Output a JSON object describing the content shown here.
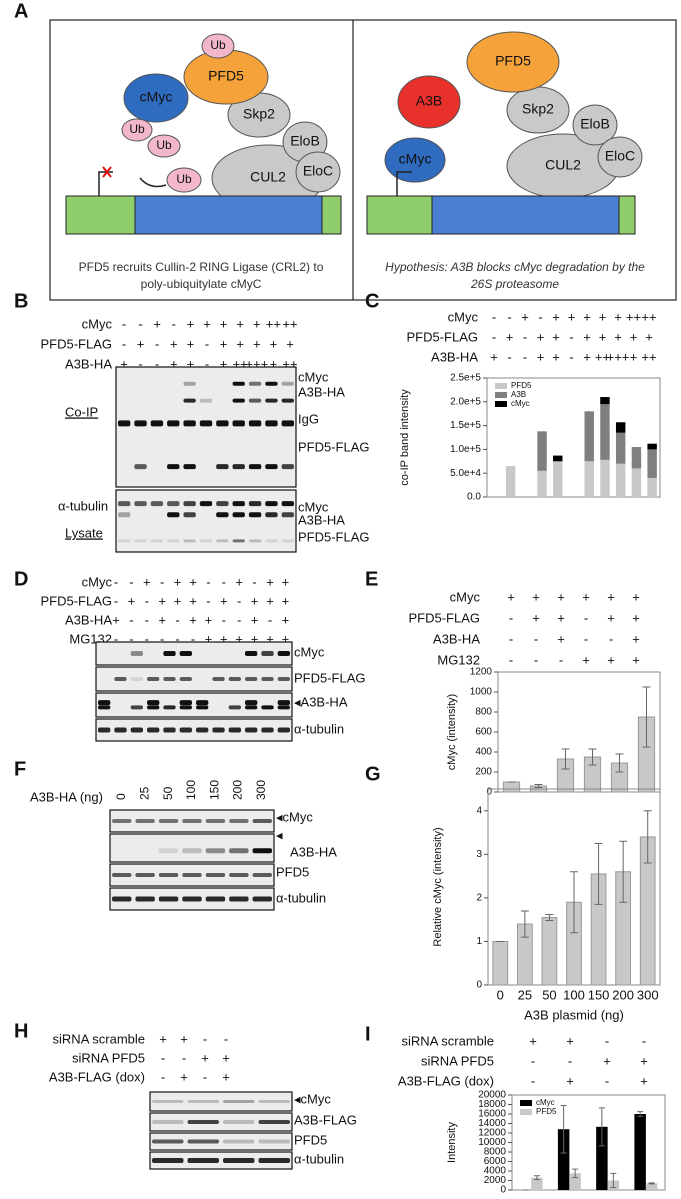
{
  "panels": {
    "a": {
      "label": "A",
      "left": {
        "nodes": [
          "Ub",
          "PFD5",
          "cMyc",
          "Skp2",
          "Ub",
          "Ub",
          "Ub",
          "CUL2",
          "EloB",
          "EloC"
        ],
        "caption": [
          "PFD5 recruits Cullin-2 RING Ligase (CRL2) to",
          "poly-ubiquitylate cMyC"
        ]
      },
      "right": {
        "nodes": [
          "PFD5",
          "A3B",
          "Skp2",
          "EloB",
          "CUL2",
          "EloC",
          "cMyc"
        ],
        "caption": [
          "Hypothesis: A3B blocks cMyc degradation by the",
          "26S proteasome"
        ]
      }
    },
    "b": {
      "label": "B",
      "conditions": [
        {
          "name": "cMyc",
          "signs": [
            "-",
            "-",
            "+",
            "-",
            "+",
            "+",
            "+",
            "+",
            "+",
            "++",
            "++"
          ]
        },
        {
          "name": "PFD5-FLAG",
          "signs": [
            "-",
            "+",
            "-",
            "+",
            "+",
            "-",
            "+",
            "+",
            "+",
            "+",
            "+"
          ]
        },
        {
          "name": "A3B-HA",
          "signs": [
            "+",
            "-",
            "-",
            "+",
            "+",
            "-",
            "+",
            "++",
            "+++",
            "+",
            "++"
          ]
        }
      ],
      "section_labels": [
        "Co-IP",
        "Lysate"
      ],
      "left_label": "α-tubulin",
      "bands": [
        "cMyc",
        "A3B-HA",
        "IgG",
        "PFD5-FLAG",
        "cMyc",
        "A3B-HA",
        "PFD5-FLAG"
      ]
    },
    "c": {
      "label": "C",
      "conditions": [
        {
          "name": "cMyc",
          "signs": [
            "-",
            "-",
            "+",
            "-",
            "+",
            "+",
            "+",
            "+",
            "+",
            "++",
            "++"
          ]
        },
        {
          "name": "PFD5-FLAG",
          "signs": [
            "-",
            "+",
            "-",
            "+",
            "+",
            "-",
            "+",
            "+",
            "+",
            "+",
            "+"
          ]
        },
        {
          "name": "A3B-HA",
          "signs": [
            "+",
            "-",
            "-",
            "+",
            "+",
            "-",
            "+",
            "++",
            "+++",
            "+",
            "++"
          ]
        }
      ]
    },
    "d": {
      "label": "D",
      "conditions": [
        {
          "name": "cMyc",
          "signs": [
            "-",
            "-",
            "+",
            "-",
            "+",
            "+",
            "-",
            "-",
            "+",
            "-",
            "+",
            "+"
          ]
        },
        {
          "name": "PFD5-FLAG",
          "signs": [
            "-",
            "+",
            "-",
            "+",
            "+",
            "+",
            "-",
            "+",
            "-",
            "+",
            "+",
            "+"
          ]
        },
        {
          "name": "A3B-HA",
          "signs": [
            "+",
            "-",
            "-",
            "+",
            "-",
            "+",
            "+",
            "-",
            "-",
            "+",
            "-",
            "+"
          ]
        },
        {
          "name": "MG132",
          "signs": [
            "-",
            "-",
            "-",
            "-",
            "-",
            "-",
            "+",
            "+",
            "+",
            "+",
            "+",
            "+"
          ]
        }
      ],
      "bands": [
        "cMyc",
        "PFD5-FLAG",
        "◂A3B-HA",
        "α-tubulin"
      ]
    },
    "e": {
      "label": "E",
      "conditions": [
        {
          "name": "cMyc",
          "signs": [
            "+",
            "+",
            "+",
            "+",
            "+",
            "+"
          ]
        },
        {
          "name": "PFD5-FLAG",
          "signs": [
            "-",
            "+",
            "+",
            "-",
            "+",
            "+"
          ]
        },
        {
          "name": "A3B-HA",
          "signs": [
            "-",
            "-",
            "+",
            "-",
            "-",
            "+"
          ]
        },
        {
          "name": "MG132",
          "signs": [
            "-",
            "-",
            "-",
            "+",
            "+",
            "+"
          ]
        }
      ]
    },
    "f": {
      "label": "F",
      "dose_label": "A3B-HA (ng)",
      "doses": [
        "0",
        "25",
        "50",
        "100",
        "150",
        "200",
        "300"
      ],
      "bands": [
        "◂cMyc",
        "◂",
        "A3B-HA",
        "PFD5",
        "α-tubulin"
      ]
    },
    "g": {
      "label": "G"
    },
    "h": {
      "label": "H",
      "conditions": [
        {
          "name": "siRNA scramble",
          "signs": [
            "+",
            "+",
            "-",
            "-"
          ]
        },
        {
          "name": "siRNA PFD5",
          "signs": [
            "-",
            "-",
            "+",
            "+"
          ]
        },
        {
          "name": "A3B-FLAG (dox)",
          "signs": [
            "-",
            "+",
            "-",
            "+"
          ]
        }
      ],
      "bands": [
        "◂cMyc",
        "A3B-FLAG",
        "PFD5",
        "α-tubulin"
      ]
    },
    "i": {
      "label": "I",
      "conditions": [
        {
          "name": "siRNA scramble",
          "signs": [
            "+",
            "+",
            "-",
            "-"
          ]
        },
        {
          "name": "siRNA PFD5",
          "signs": [
            "-",
            "-",
            "+",
            "+"
          ]
        },
        {
          "name": "A3B-FLAG (dox)",
          "signs": [
            "-",
            "+",
            "-",
            "+"
          ]
        }
      ]
    }
  },
  "chart_data": [
    {
      "type": "stacked_bar",
      "y_label": "co-IP band intensity",
      "categories": [
        null,
        null,
        null,
        null,
        null,
        null,
        null,
        null,
        null,
        null,
        null
      ],
      "series": [
        {
          "name": "PFD5",
          "color": "#c8c8c8",
          "values": [
            0,
            65000,
            0,
            55000,
            75000,
            0,
            75000,
            78000,
            70000,
            60000,
            40000
          ]
        },
        {
          "name": "A3B",
          "color": "#7f7f7f",
          "values": [
            0,
            0,
            0,
            83000,
            0,
            0,
            105000,
            117000,
            65000,
            45000,
            60000
          ]
        },
        {
          "name": "cMyc",
          "color": "#000000",
          "values": [
            0,
            0,
            0,
            0,
            12000,
            0,
            0,
            15000,
            22000,
            0,
            12000
          ]
        }
      ],
      "ylim": [
        0,
        250000
      ],
      "yticks": [
        {
          "value": 0,
          "label": "0.0"
        },
        {
          "value": 50000,
          "label": "5.0e+4"
        },
        {
          "value": 100000,
          "label": "1.0e+5"
        },
        {
          "value": 150000,
          "label": "1.5e+5"
        },
        {
          "value": 200000,
          "label": "2.0e+5"
        },
        {
          "value": 250000,
          "label": "2.5e+5"
        }
      ],
      "legend": "upper-left"
    },
    {
      "type": "bar",
      "y_label": "cMyc (intensity)",
      "categories": [
        null,
        null,
        null,
        null,
        null,
        null
      ],
      "values": [
        100,
        60,
        330,
        350,
        290,
        750
      ],
      "errors": [
        0,
        15,
        100,
        80,
        90,
        300
      ],
      "color": "#c8c8c8",
      "ylim": [
        0,
        1200
      ],
      "yticks": [
        0,
        200,
        400,
        600,
        800,
        1000,
        1200
      ]
    },
    {
      "type": "bar",
      "y_label": "Relative cMyc (intensity)",
      "x_label": "A3B plasmid (ng)",
      "categories": [
        "0",
        "25",
        "50",
        "100",
        "150",
        "200",
        "300"
      ],
      "values": [
        1,
        1.4,
        1.55,
        1.9,
        2.55,
        2.6,
        3.4
      ],
      "errors": [
        0,
        0.3,
        0.07,
        0.7,
        0.7,
        0.7,
        0.6
      ],
      "color": "#c8c8c8",
      "ylim": [
        0,
        4.5
      ],
      "yticks": [
        0,
        1,
        2,
        3,
        4
      ]
    },
    {
      "type": "grouped_bar",
      "y_label": "Intensity",
      "categories": [
        null,
        null,
        null,
        null
      ],
      "series": [
        {
          "name": "cMyc",
          "color": "#000000",
          "values": [
            0,
            12800,
            13300,
            16000
          ],
          "errors": [
            0,
            5000,
            4000,
            500
          ]
        },
        {
          "name": "PFD5",
          "color": "#c8c8c8",
          "values": [
            2600,
            3500,
            2000,
            1400
          ],
          "errors": [
            400,
            900,
            1500,
            100
          ]
        }
      ],
      "ylim": [
        0,
        20000
      ],
      "yticks": [
        0,
        2000,
        4000,
        6000,
        8000,
        10000,
        12000,
        14000,
        16000,
        18000,
        20000
      ],
      "legend": "upper-left"
    }
  ]
}
